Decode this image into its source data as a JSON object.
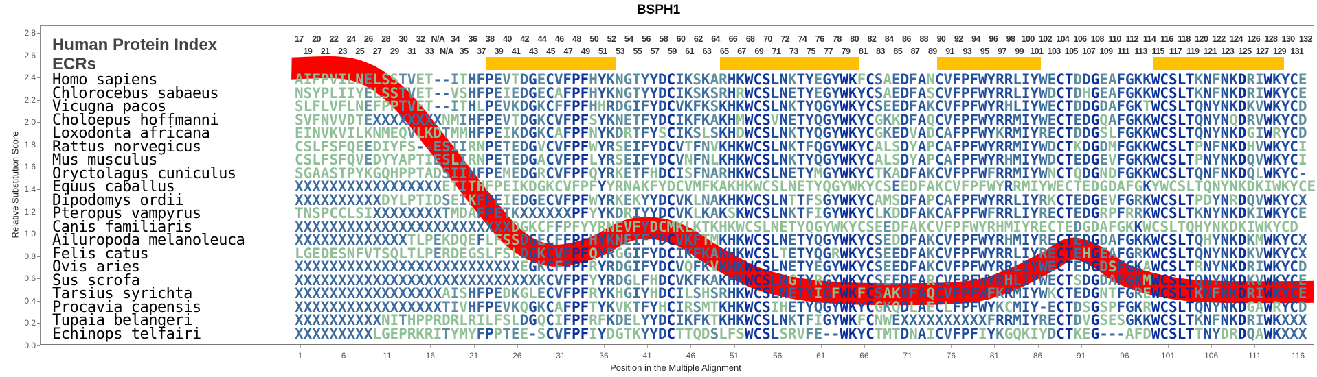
{
  "title": "BSPH1",
  "legend_title": "Human Protein Index",
  "ecr_label": "ECRs",
  "colors": {
    "curve": "#FF0000",
    "ecr_bar": "#FFC000",
    "conserved": "#0B2F9A",
    "high": "#1E4C9E",
    "mid": "#3B6A9C",
    "low": "#5E8E9E",
    "variable": "#8FBF96"
  },
  "position_index_top": [
    "17",
    "20",
    "22",
    "24",
    "26",
    "28",
    "30",
    "32",
    "N/A",
    "34",
    "36",
    "38",
    "40",
    "42",
    "44",
    "46",
    "48",
    "50",
    "52",
    "54",
    "56",
    "58",
    "60",
    "62",
    "64",
    "66",
    "68",
    "70",
    "72",
    "74",
    "76",
    "78",
    "80",
    "82",
    "84",
    "86",
    "88",
    "90",
    "92",
    "94",
    "96",
    "98",
    "100",
    "102",
    "104",
    "106",
    "108",
    "110",
    "112",
    "114",
    "116",
    "118",
    "120",
    "122",
    "124",
    "126",
    "128",
    "130",
    "132"
  ],
  "position_index_bottom": [
    "19",
    "21",
    "23",
    "25",
    "27",
    "29",
    "31",
    "33",
    "N/A",
    "35",
    "37",
    "39",
    "41",
    "43",
    "45",
    "47",
    "49",
    "51",
    "53",
    "55",
    "57",
    "59",
    "61",
    "63",
    "65",
    "67",
    "69",
    "71",
    "73",
    "75",
    "77",
    "79",
    "81",
    "83",
    "85",
    "87",
    "89",
    "91",
    "93",
    "95",
    "97",
    "99",
    "101",
    "103",
    "105",
    "107",
    "109",
    "111",
    "113",
    "115",
    "117",
    "119",
    "121",
    "123",
    "125",
    "127",
    "129",
    "131"
  ],
  "ecr_regions": [
    [
      23,
      37
    ],
    [
      50,
      65
    ],
    [
      75,
      86
    ],
    [
      100,
      114
    ]
  ],
  "alignment": [
    {
      "species": "Homo sapiens",
      "seq": "AIFPVILNELSSTVET--ITHFPEVTDGECVFPFHYKNGTYYDCIKSKARHKWCSLNKTYEGYWKFCSAEDFANCVFPFWYRRLIYWECTDDGEAFGKKWCSLTKNFNKDRIWKYCE"
    },
    {
      "species": "Chlorocebus sabaeus",
      "seq": "NSYPLIIYELSSTVET--VSHFPEIEDGECAFPFHYKNGTYYDCIKSKSRHRWCSLNETYEGYWKYCSAEDFASCVFPFWYRRLIYWDCTDHGEAFGKKWCSLTKNFNKDRIWKYCE"
    },
    {
      "species": "Vicugna pacos",
      "seq": "SLFLVFLNEFPPTVET--ITHLPEVKDGKCFFPFHHRDGIFYDCVKFKSKHKWCSLNKTYQGYWKYCSEEDFAKCVFPFWYRHLIYWECTDDGDAFGKTWCSLTQNYNKDKVWKYCD"
    },
    {
      "species": "Choloepus hoffmanni",
      "seq": "SVFNVVDTEXXXXXXXXNMIHFPEVTDGKCVFPFSYKNETFYDCIKFKAKHMWCSVNETYQGYWKYCGKKDFAQCVFPFWYRRMIYWECTEDGQAFGKKWCSLTQNYNQDRVWKYCD"
    },
    {
      "species": "Loxodonta africana",
      "seq": "EINVKVILKNMEQVLKDTMMHFPEIKDGKCAFPFNYKDRTFYSCIKSLSKHDWCSLNKTYQGYWKYCGKEDVADCAFPFWYKRMIYRECTDDGSLFGKKWCSLTQNYNKDGIWRYCD"
    },
    {
      "species": "Rattus norvegicus",
      "seq": "CSLFSFQEEDIYFS--ESIIRNPETEDGVCVFPFWYRSEIFYDCVTFNVKHKWCSLNKTFQGYWKYCALSDYAPCAFPFWYRRMIYWDCTKDGDMFGKKWCSLTPNFNKDHVWKYCI"
    },
    {
      "species": "Mus musculus",
      "seq": "CSLFSFQVEDYYAPTIESLIRNPETEDGACVFPFLYRSEIFYDCVNFNLKHKWCSLNKTYQGYWKYCALSDYAPCAFPFWYRHMIYWDCTEDGEVFGKKWCSLTPNYNKDQVWKYCI"
    },
    {
      "species": "Oryctolagus cuniculus",
      "seq": "SGAASTPYKGQHPPTADSIIHFPEMEDGRCVFPFQYRKETFHDCISFNARHKWCSLNETYMGYWKYCTKADFAKCVFPFWFRRMIYWNCTQDGNDFGKKWCSLTQNFNKDQLWKYC-"
    },
    {
      "species": "Equus caballus",
      "seq": "XXXXXXXXXXXXXXXXXETITHFPEIKDGKCVFPFYYRNAKFYDCVMFKAKHKWCSLNETYQGYWKYCSEEDFAKCVFPFWYRRMIYWECTEDGDAFGKYWCSLTQNYNKDKIWKYCE"
    },
    {
      "species": "Dipodomys ordii",
      "seq": "XXXXXXXXXXDYLPTIDSEIKFPEIEDGECVFPFWYRKEKYYDCVKLNAKHKWCSLNTTFSGYWKYCAMSDFAPCAFPFWYRRLIYRKCTEDGEVFGRKWCSLTPDYNRDQVWKYCX"
    },
    {
      "species": "Pteropus vampyrus",
      "seq": "TNSPCCLSIXXXXXXXXTMDAFPETKXXXXXXPFYYKDRIYYDCVKLKAKSKWCSLNKTFIGYWKYCLKDDFAKCAFPFWFRRLIYRECTEDGRPFRRKWCSLTKNYNKDKIWKYCE"
    },
    {
      "species": "Canis familiaris",
      "seq": "XXXXXXXXXXXXXXXXXXXXXXXXXDGKCFFPFYYRNEVFYDCMKLKTKHKWCSLNETYQGYWKYCSEEDFAKCVFPFWYRHMIYRECTEDGDAFGKKWCSLTQHYNKDKIWKYCD"
    },
    {
      "species": "Ailuropoda melanoleuca",
      "seq": "XXXXXXXXXXXXXTLPEKDQEFLFSSDGECFFPFHYKNEIFYDCVKFTMKHKWCSLNETYQGYWKYCSEDDFAKCVFPFWYRHMIYRECTEDGDAFGKKWCSLTQHYNKDKMWKYCX"
    },
    {
      "species": "Felis catus",
      "seq": "LGEDESNFVTSQLTLPERDEGSLFSLDGKCVFPFQYRGGIFYDCIKFKAKHKWCSLTETYQGRWKYCSEEDFAKCVFPFWYRRLIYRECTEHGEAFGRKWCSLTQNYNKDKVWKYCX"
    },
    {
      "species": "Ovis aries",
      "seq": "XXXXXXXXXXXXXXXXXXXXXXXXXXEGKCFFPFRYRDGIFYDCVQFKVKHKWCSLNETYEGYWKYCSEEDFAKCVFPFWYRRLIYWECTEDGDSFGKAWCSLTRNYNKDRIWKYCD"
    },
    {
      "species": "Sus scrofa",
      "seq": "XXXXXXXXXXXXXXXXXXXXXXXXXXXXKCVFPFYYRDGLFHDCVKFKAKHKWCSLNGTYRGYWKYCSEEDFARCVFPFWYRHLIYWECTSDGDAFGKMWCSLTQNYNKDKVWKYCE"
    },
    {
      "species": "Tarsius syrichta",
      "seq": "XXXXXXXXXXXXXXXXXAISHFPEDKGLECVFPFRYKHGIYHDCILSHSRHKWCSLNETYIGFWKFCSAKDFAQCVFPFWFKRMIYWKCTEDGNTFGREWCSLTKNFNKDRIWKYCE"
    },
    {
      "species": "Procavia capensis",
      "seq": "XXXXXXXXXXXXXXXXXTIVHFPEVKQGKCAFPFTYKVKTFYHCIRSMTKHKWCSIHETYQGYWKYCGKQDLAECLFPFWYKCMIY-ECTDSGSPFGKRWCSLTQNYNKDGAWRYCD"
    },
    {
      "species": "Tupaia belangeri",
      "seq": "XXXXXXXXXXNITHPPRDRLRILFSLDGQCIFPFRFKDELYYDCIKFKTKHKWCSLNKTFIGYWKFCNWEXXXXXXXXXXFRRMIYRECTDVGSESGKKWCSLTKNFNKDRIWKXXX"
    },
    {
      "species": "Echinops telfairi",
      "seq": "XXXXXXXXXLGEPRKRITYMYFPPTEE-SCVFPFIYDGTKYYDCTTQDSLFSWCSLSRVFE--WKYCTMTDNAICVFPFIYKGQKIYDCTKEG---AFDWCSLTTNYDRDQAWKXXX"
    }
  ],
  "chart_data": {
    "type": "line",
    "title": "BSPH1",
    "xlabel": "Position in the Multiple Alignment",
    "ylabel": "Relative Substitution Score",
    "xlim": [
      0,
      118
    ],
    "ylim": [
      0.0,
      2.8
    ],
    "xticks": [
      "1",
      "6",
      "11",
      "16",
      "21",
      "26",
      "31",
      "36",
      "41",
      "46",
      "51",
      "56",
      "61",
      "66",
      "71",
      "76",
      "81",
      "86",
      "91",
      "96",
      "101",
      "106",
      "111",
      "116"
    ],
    "yticks": [
      "0.0",
      "0.2",
      "0.4",
      "0.6",
      "0.8",
      "1.0",
      "1.2",
      "1.4",
      "1.6",
      "1.8",
      "2.0",
      "2.2",
      "2.4",
      "2.6",
      "2.8"
    ],
    "grid": false,
    "series": [
      {
        "name": "Relative Substitution Score",
        "x": [
          0,
          7,
          12,
          17,
          22,
          26,
          30,
          34.5,
          38.5,
          41.5,
          45,
          49,
          54,
          60,
          68,
          78,
          83,
          87,
          90,
          93,
          96,
          101,
          107,
          118
        ],
        "y": [
          2.49,
          2.48,
          2.26,
          1.81,
          1.32,
          0.98,
          0.85,
          0.91,
          1.06,
          1.09,
          1.02,
          0.83,
          0.64,
          0.54,
          0.51,
          0.53,
          0.64,
          0.79,
          0.91,
          0.83,
          0.68,
          0.57,
          0.53,
          0.53
        ]
      }
    ]
  }
}
